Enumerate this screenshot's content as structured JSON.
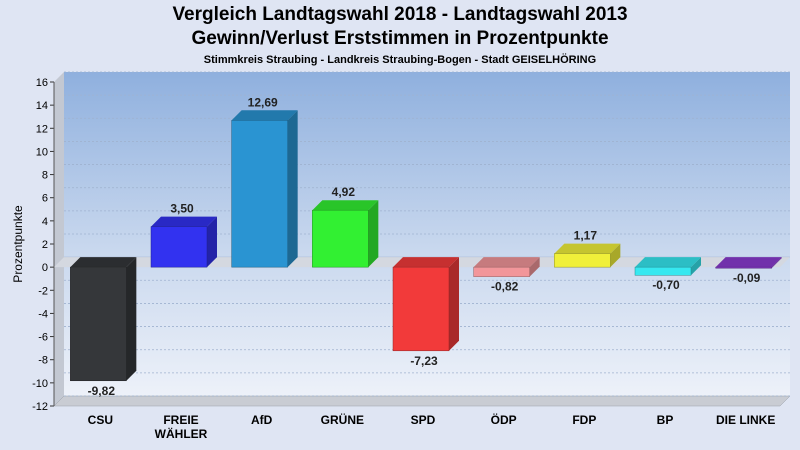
{
  "title_line1": "Vergleich Landtagswahl 2018 - Landtagswahl 2013",
  "title_line2": "Gewinn/Verlust Erststimmen in Prozentpunkte",
  "subtitle": "Stimmkreis Straubing - Landkreis Straubing-Bogen - Stadt GEISELHÖRING",
  "chart_data": {
    "type": "bar",
    "title": "Vergleich Landtagswahl 2018 - Landtagswahl 2013 / Gewinn/Verlust Erststimmen in Prozentpunkte",
    "subtitle": "Stimmkreis Straubing - Landkreis Straubing-Bogen - Stadt GEISELHÖRING",
    "ylabel": "Prozentpunkte",
    "xlabel": "",
    "ylim": [
      -12,
      16
    ],
    "yticks": [
      16,
      14,
      12,
      10,
      8,
      6,
      4,
      2,
      0,
      -2,
      -4,
      -6,
      -8,
      -10,
      -12
    ],
    "categories": [
      "CSU",
      "FREIE WÄHLER",
      "AfD",
      "GRÜNE",
      "SPD",
      "ÖDP",
      "FDP",
      "BP",
      "DIE LINKE"
    ],
    "category_lines": [
      [
        "CSU"
      ],
      [
        "FREIE",
        "WÄHLER"
      ],
      [
        "AfD"
      ],
      [
        "GRÜNE"
      ],
      [
        "SPD"
      ],
      [
        "ÖDP"
      ],
      [
        "FDP"
      ],
      [
        "BP"
      ],
      [
        "DIE LINKE"
      ]
    ],
    "values": [
      -9.82,
      3.5,
      12.69,
      4.92,
      -7.23,
      -0.82,
      1.17,
      -0.7,
      -0.09
    ],
    "value_labels": [
      "-9,82",
      "3,50",
      "12,69",
      "4,92",
      "-7,23",
      "-0,82",
      "1,17",
      "-0,70",
      "-0,09"
    ],
    "colors": [
      "#35373a",
      "#3232f0",
      "#2a94d2",
      "#32f032",
      "#f23a3a",
      "#f2969a",
      "#f0f03a",
      "#36e8f0",
      "#8a3ad0"
    ],
    "grid": true,
    "legend": "none",
    "style": "3d-bars"
  }
}
